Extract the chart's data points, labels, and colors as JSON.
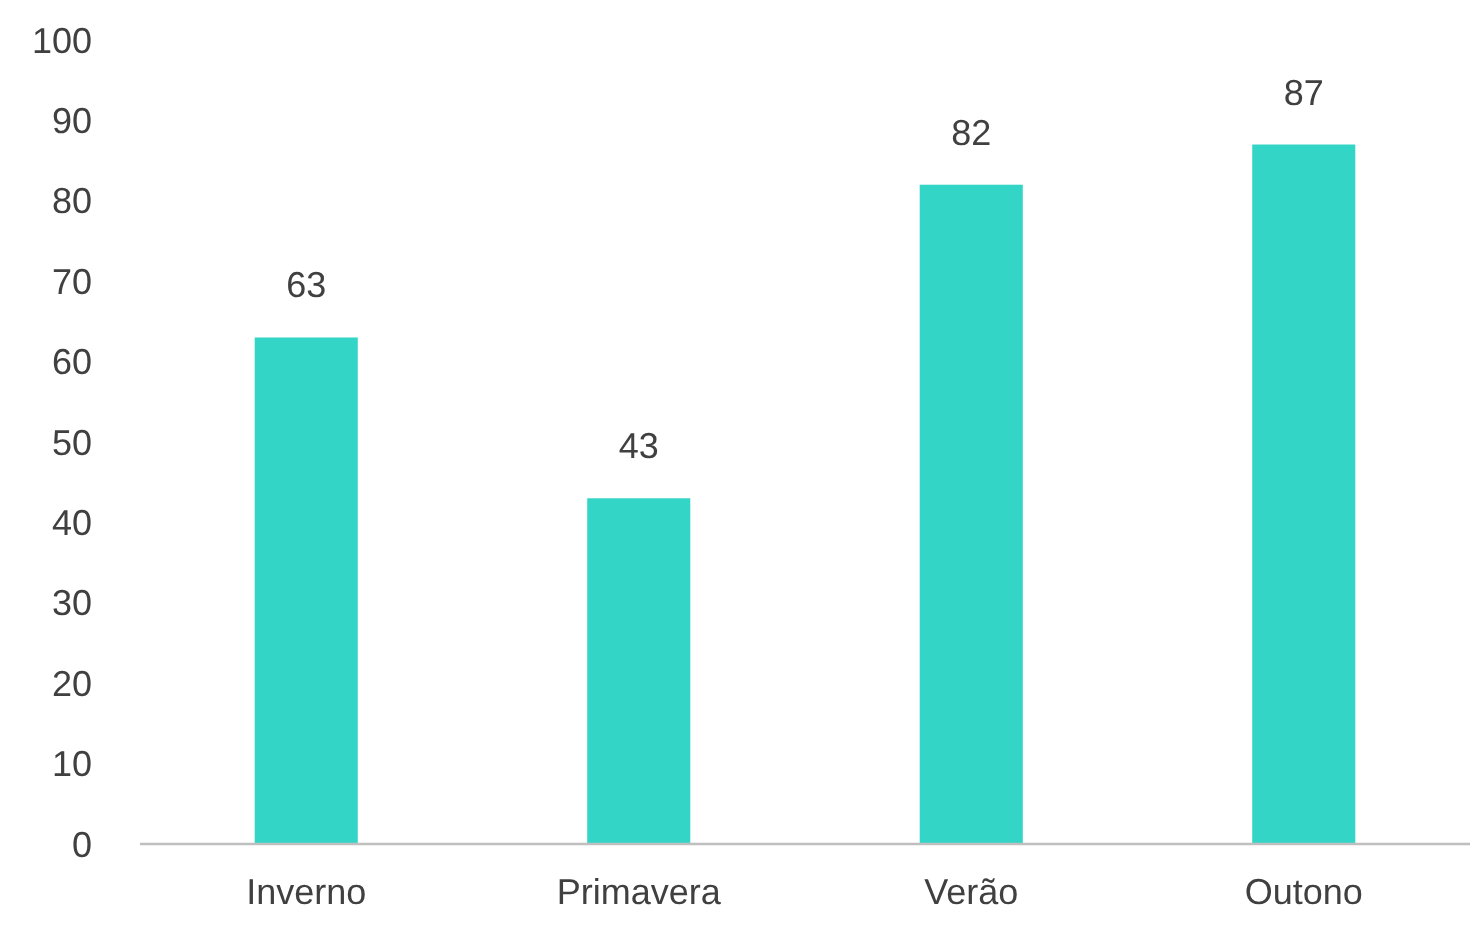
{
  "chart_data": {
    "type": "bar",
    "categories": [
      "Inverno",
      "Primavera",
      "Verão",
      "Outono"
    ],
    "values": [
      63,
      43,
      82,
      87
    ],
    "color": "#33d6c6",
    "ylim": [
      0,
      100
    ],
    "yticks": [
      0,
      10,
      20,
      30,
      40,
      50,
      60,
      70,
      80,
      90,
      100
    ],
    "grid": false,
    "data_labels": true
  }
}
